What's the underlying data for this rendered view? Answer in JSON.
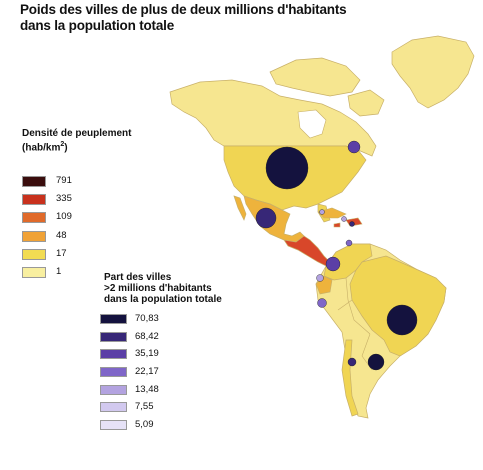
{
  "title": {
    "line1": "Poids des villes de plus de deux millions d'habitants",
    "line2": "dans la population totale"
  },
  "density_legend": {
    "title_line1": "Densité de peuplement",
    "title_line2": "(hab/km",
    "title_sup": "2",
    "title_end": ")",
    "items": [
      {
        "label": "791",
        "color": "#3a0d0d"
      },
      {
        "label": "335",
        "color": "#c8311d"
      },
      {
        "label": "109",
        "color": "#e06a2a"
      },
      {
        "label": "48",
        "color": "#f0a236"
      },
      {
        "label": "17",
        "color": "#f2dc52"
      },
      {
        "label": "1",
        "color": "#f8efa0"
      }
    ]
  },
  "share_legend": {
    "title_line1": "Part des villes",
    "title_line2": ">2 millions d'habitants",
    "title_line3": "dans la population totale",
    "items": [
      {
        "label": "70,83",
        "color": "#14123e"
      },
      {
        "label": "68,42",
        "color": "#372777"
      },
      {
        "label": "35,19",
        "color": "#5b3fa6"
      },
      {
        "label": "22,17",
        "color": "#7f66c8"
      },
      {
        "label": "13,48",
        "color": "#b3a3e0"
      },
      {
        "label": "7,55",
        "color": "#d2c9ef"
      },
      {
        "label": "5,09",
        "color": "#e6e2f7"
      }
    ]
  },
  "map_colors": {
    "ocean": "#ffffff",
    "border": "#c8b068",
    "low": "#f6e690",
    "mid": "#f0d553",
    "warm": "#eeb33c",
    "hot": "#d8472a"
  }
}
